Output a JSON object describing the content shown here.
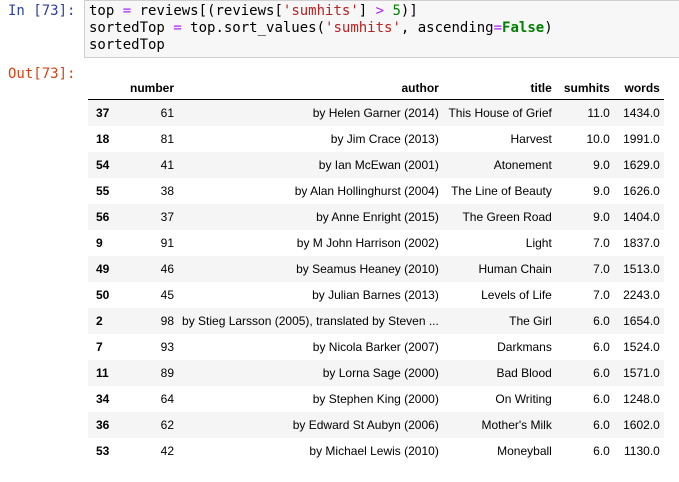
{
  "input_prompt": "In [73]:",
  "output_prompt": "Out[73]:",
  "code": [
    [
      {
        "t": "top",
        "c": "plain"
      },
      {
        "t": " ",
        "c": "plain"
      },
      {
        "t": "=",
        "c": "op"
      },
      {
        "t": " reviews[(reviews[",
        "c": "plain"
      },
      {
        "t": "'sumhits'",
        "c": "str"
      },
      {
        "t": "] ",
        "c": "plain"
      },
      {
        "t": ">",
        "c": "op"
      },
      {
        "t": " ",
        "c": "plain"
      },
      {
        "t": "5",
        "c": "num"
      },
      {
        "t": ")]",
        "c": "plain"
      }
    ],
    [
      {
        "t": "sortedTop ",
        "c": "plain"
      },
      {
        "t": "=",
        "c": "op"
      },
      {
        "t": " top.sort_values(",
        "c": "plain"
      },
      {
        "t": "'sumhits'",
        "c": "str"
      },
      {
        "t": ", ascending",
        "c": "plain"
      },
      {
        "t": "=",
        "c": "op"
      },
      {
        "t": "False",
        "c": "kw"
      },
      {
        "t": ")",
        "c": "plain"
      }
    ],
    [
      {
        "t": "sortedTop",
        "c": "plain"
      }
    ]
  ],
  "table": {
    "columns": [
      "",
      "number",
      "author",
      "title",
      "sumhits",
      "words"
    ],
    "rows": [
      [
        "37",
        "61",
        "by Helen Garner (2014)",
        "This House of Grief",
        "11.0",
        "1434.0"
      ],
      [
        "18",
        "81",
        "by Jim Crace (2013)",
        "Harvest",
        "10.0",
        "1991.0"
      ],
      [
        "54",
        "41",
        "by Ian McEwan (2001)",
        "Atonement",
        "9.0",
        "1629.0"
      ],
      [
        "55",
        "38",
        "by Alan Hollinghurst (2004)",
        "The Line of Beauty",
        "9.0",
        "1626.0"
      ],
      [
        "56",
        "37",
        "by Anne Enright (2015)",
        "The Green Road",
        "9.0",
        "1404.0"
      ],
      [
        "9",
        "91",
        "by M John Harrison (2002)",
        "Light",
        "7.0",
        "1837.0"
      ],
      [
        "49",
        "46",
        "by Seamus Heaney (2010)",
        "Human Chain",
        "7.0",
        "1513.0"
      ],
      [
        "50",
        "45",
        "by Julian Barnes (2013)",
        "Levels of Life",
        "7.0",
        "2243.0"
      ],
      [
        "2",
        "98",
        "by Stieg Larsson (2005), translated by Steven ...",
        "The Girl",
        "6.0",
        "1654.0"
      ],
      [
        "7",
        "93",
        "by Nicola Barker (2007)",
        "Darkmans",
        "6.0",
        "1524.0"
      ],
      [
        "11",
        "89",
        "by Lorna Sage (2000)",
        "Bad Blood",
        "6.0",
        "1571.0"
      ],
      [
        "34",
        "64",
        "by Stephen King (2000)",
        "On Writing",
        "6.0",
        "1248.0"
      ],
      [
        "36",
        "62",
        "by Edward St Aubyn (2006)",
        "Mother's Milk",
        "6.0",
        "1602.0"
      ],
      [
        "53",
        "42",
        "by Michael Lewis (2010)",
        "Moneyball",
        "6.0",
        "1130.0"
      ]
    ]
  }
}
